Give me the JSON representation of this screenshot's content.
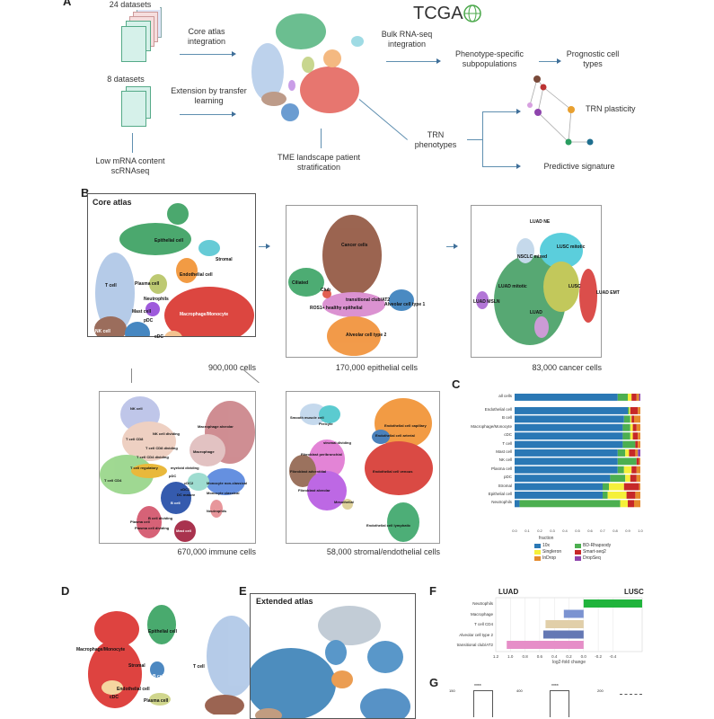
{
  "panels": {
    "A": "A",
    "B": "B",
    "C": "C",
    "D": "D",
    "E": "E",
    "F": "F",
    "G": "G"
  },
  "panel_a": {
    "datasets_top": "24 datasets",
    "datasets_bottom": "8 datasets",
    "low_mrna": "Low mRNA content scRNAseq",
    "core_integration": "Core atlas integration",
    "extension": "Extension by transfer learning",
    "tme": "TME landscape patient stratification",
    "tcga": "TCGA",
    "bulk": "Bulk RNA-seq integration",
    "phenotype_subpop": "Phenotype-specific subpopulations",
    "prognostic": "Prognostic cell types",
    "trn_phenotypes": "TRN phenotypes",
    "trn_plasticity": "TRN plasticity",
    "predictive": "Predictive signature"
  },
  "panel_b": {
    "core": {
      "title": "Core atlas",
      "caption": "900,000 cells",
      "labels": [
        "Epithelial cell",
        "Stromal",
        "Endothelial cell",
        "T cell",
        "Plasma cell",
        "Neutrophils",
        "Mast cell",
        "pDC",
        "Macrophage/Monocyte",
        "NK cell",
        "B cell",
        "cDC"
      ]
    },
    "epithelial": {
      "caption": "170,000 epithelial cells",
      "labels": [
        "Cancer cells",
        "Ciliated",
        "Club",
        "transitional club/AT2",
        "Alveolar cell type 1",
        "ROS1+ healthy epithelial",
        "Alveolar cell type 2"
      ]
    },
    "cancer": {
      "caption": "83,000 cancer cells",
      "labels": [
        "LUAD NE",
        "LUSC mitotic",
        "NSCLC mixed",
        "LUAD mitotic",
        "LUSC",
        "LUAD EMT",
        "LUAD MSLN",
        "LUAD"
      ]
    },
    "immune": {
      "caption": "670,000 immune cells",
      "labels": [
        "NK cell",
        "NK cell dividing",
        "T cell CD8",
        "T cell CD8 dividing",
        "T cell CD4 dividing",
        "T cell regulatory",
        "T cell CD4",
        "Macrophage alveolar",
        "Macrophage",
        "myeloid dividing",
        "pDC",
        "cDC2",
        "cDC1",
        "DC mature",
        "Monocyte non-classical",
        "Monocyte classical",
        "B cell",
        "B cell dividing",
        "Neutrophils",
        "Plasma cell",
        "Plasma cell dividing",
        "Mast cell"
      ]
    },
    "stromal": {
      "caption": "58,000 stromal/endothelial cells",
      "labels": [
        "Smooth muscle cell",
        "Pericyte",
        "Endothelial cell capillary",
        "Endothelial cell arterial",
        "stromal dividing",
        "Fibroblast peribronchial",
        "Fibroblast adventitial",
        "Fibroblast alveolar",
        "Mesothelial",
        "Endothelial cell venous",
        "Endothelial cell lymphatic"
      ]
    }
  },
  "panel_d": {
    "labels": [
      "Epithelial cell",
      "Macrophage/Monocyte",
      "Stromal",
      "T cell",
      "B cell",
      "Endothelial cell",
      "cDC",
      "Plasma cell"
    ]
  },
  "panel_e": {
    "title": "Extended atlas"
  },
  "panel_g": {
    "significance": [
      "****",
      "****"
    ],
    "ticks": [
      "150",
      "400",
      "200",
      "300"
    ]
  },
  "chart_data": [
    {
      "type": "bar",
      "orientation": "horizontal-stacked",
      "categories": [
        "all cells",
        "Endothelial cell",
        "B cell",
        "Macrophage/Monocyte",
        "cDC",
        "T cell",
        "Mast cell",
        "NK cell",
        "Plasma cell",
        "pDC",
        "Stromal",
        "Epithelial cell",
        "Neutrophils"
      ],
      "series": [
        {
          "name": "10x",
          "color": "#2a78b5",
          "values": [
            0.82,
            0.9,
            0.87,
            0.86,
            0.86,
            0.86,
            0.82,
            0.82,
            0.82,
            0.76,
            0.7,
            0.7,
            0.04
          ]
        },
        {
          "name": "BD-Rhapsody",
          "color": "#4caf50",
          "values": [
            0.08,
            0.01,
            0.05,
            0.06,
            0.06,
            0.1,
            0.06,
            0.15,
            0.05,
            0.12,
            0.05,
            0.04,
            0.8
          ]
        },
        {
          "name": "Singleron",
          "color": "#f5f03a",
          "values": [
            0.03,
            0.01,
            0.01,
            0.02,
            0.02,
            0.0,
            0.03,
            0.0,
            0.06,
            0.04,
            0.12,
            0.15,
            0.06
          ]
        },
        {
          "name": "Smart-seq2",
          "color": "#c62828",
          "values": [
            0.04,
            0.06,
            0.02,
            0.03,
            0.04,
            0.02,
            0.05,
            0.02,
            0.04,
            0.05,
            0.12,
            0.07,
            0.05
          ]
        },
        {
          "name": "InDrop",
          "color": "#e58a2c",
          "values": [
            0.02,
            0.02,
            0.05,
            0.03,
            0.02,
            0.02,
            0.02,
            0.01,
            0.03,
            0.03,
            0.01,
            0.04,
            0.05
          ]
        },
        {
          "name": "DropSeq",
          "color": "#8e44ad",
          "values": [
            0.01,
            0.0,
            0.0,
            0.0,
            0.0,
            0.0,
            0.02,
            0.0,
            0.0,
            0.0,
            0.0,
            0.0,
            0.0
          ]
        }
      ],
      "xlabel": "fraction",
      "xticks": [
        "0.0",
        "0.1",
        "0.2",
        "0.3",
        "0.4",
        "0.5",
        "0.6",
        "0.7",
        "0.8",
        "0.9",
        "1.0"
      ],
      "xlim": [
        0,
        1
      ],
      "legend": "bottom"
    },
    {
      "type": "bar",
      "orientation": "horizontal",
      "categories": [
        "Neutrophils",
        "Macrophage",
        "T cell CD4",
        "Alveolar cell type 2",
        "transitional club/AT2"
      ],
      "values": [
        -0.8,
        0.27,
        0.52,
        0.55,
        1.05
      ],
      "colors": [
        "#20b43c",
        "#7b93d1",
        "#e1cfa9",
        "#6478b4",
        "#e68ec8"
      ],
      "xlabel": "log2-fold change",
      "left_label": "LUAD",
      "right_label": "LUSC",
      "xticks": [
        "1.2",
        "1.0",
        "0.8",
        "0.6",
        "0.4",
        "0.2",
        "0.0",
        "-0.2",
        "-0.4"
      ],
      "xlim": [
        1.2,
        -0.8
      ],
      "grid": true
    }
  ]
}
